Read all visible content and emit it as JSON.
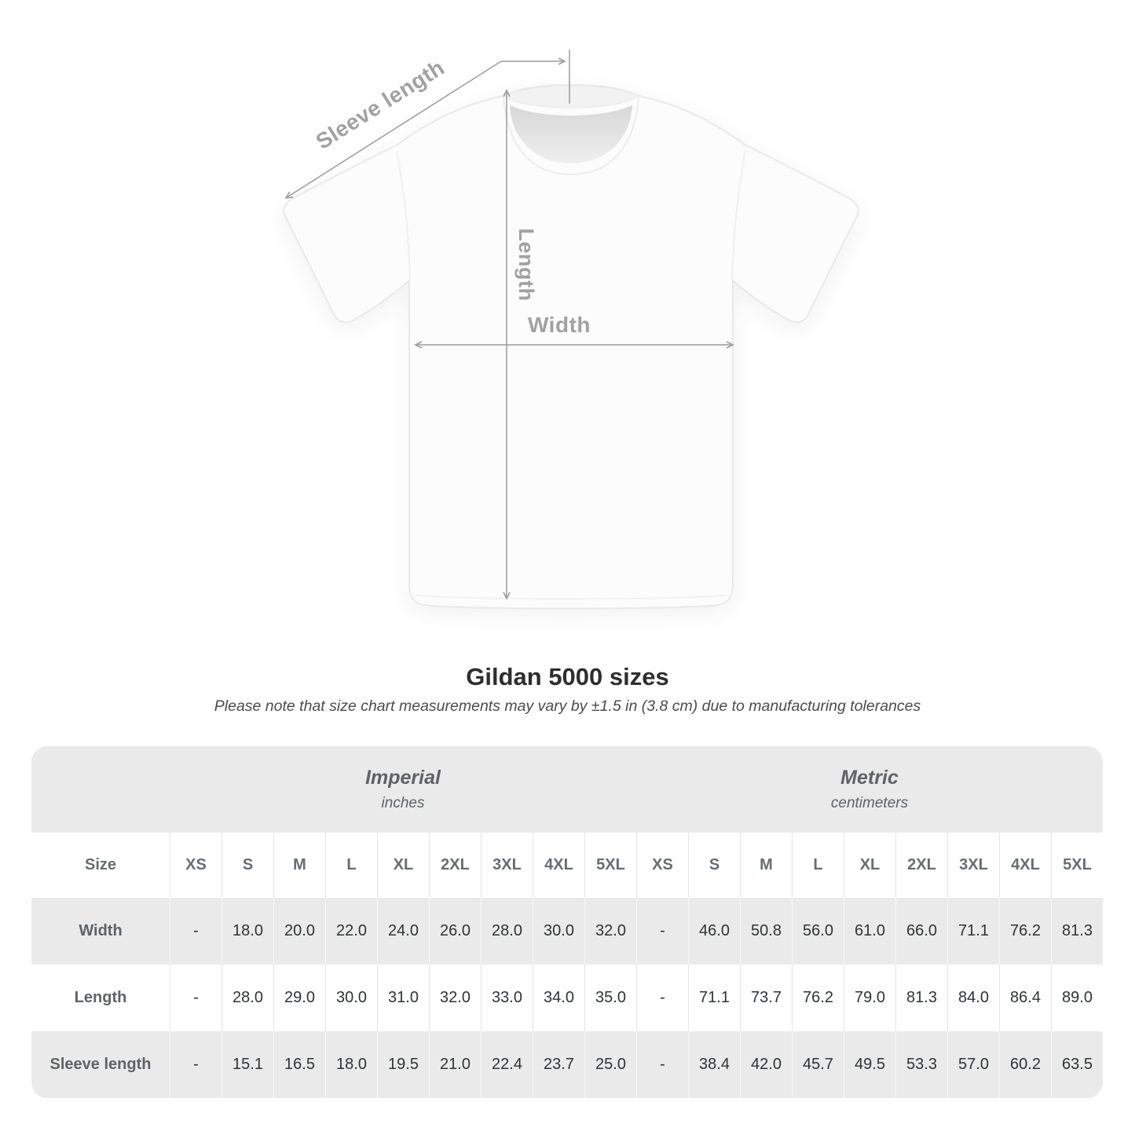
{
  "illustration": {
    "labels": {
      "sleeve_length": "Sleeve length",
      "length": "Length",
      "width": "Width"
    },
    "line_color": "#9b9b9b"
  },
  "heading": {
    "title": "Gildan 5000 sizes",
    "subtitle": "Please note that size chart measurements may vary by ±1.5 in (3.8 cm) due to manufacturing tolerances"
  },
  "size_chart": {
    "size_column_label": "Size",
    "unit_groups": [
      {
        "name": "Imperial",
        "unit": "inches"
      },
      {
        "name": "Metric",
        "unit": "centimeters"
      }
    ],
    "sizes": [
      "XS",
      "S",
      "M",
      "L",
      "XL",
      "2XL",
      "3XL",
      "4XL",
      "5XL"
    ],
    "rows": [
      {
        "label": "Width",
        "imperial": [
          "-",
          "18.0",
          "20.0",
          "22.0",
          "24.0",
          "26.0",
          "28.0",
          "30.0",
          "32.0"
        ],
        "metric": [
          "-",
          "46.0",
          "50.8",
          "56.0",
          "61.0",
          "66.0",
          "71.1",
          "76.2",
          "81.3"
        ]
      },
      {
        "label": "Length",
        "imperial": [
          "-",
          "28.0",
          "29.0",
          "30.0",
          "31.0",
          "32.0",
          "33.0",
          "34.0",
          "35.0"
        ],
        "metric": [
          "-",
          "71.1",
          "73.7",
          "76.2",
          "79.0",
          "81.3",
          "84.0",
          "86.4",
          "89.0"
        ]
      },
      {
        "label": "Sleeve length",
        "imperial": [
          "-",
          "15.1",
          "16.5",
          "18.0",
          "19.5",
          "21.0",
          "22.4",
          "23.7",
          "25.0"
        ],
        "metric": [
          "-",
          "38.4",
          "42.0",
          "45.7",
          "49.5",
          "53.3",
          "57.0",
          "60.2",
          "63.5"
        ]
      }
    ]
  },
  "chart_data": {
    "type": "table",
    "title": "Gildan 5000 sizes",
    "note": "Please note that size chart measurements may vary by ±1.5 in (3.8 cm) due to manufacturing tolerances",
    "column_groups": [
      "Imperial (inches)",
      "Metric (centimeters)"
    ],
    "columns": [
      "XS",
      "S",
      "M",
      "L",
      "XL",
      "2XL",
      "3XL",
      "4XL",
      "5XL"
    ],
    "rows": [
      {
        "measure": "Width",
        "imperial_in": [
          null,
          18.0,
          20.0,
          22.0,
          24.0,
          26.0,
          28.0,
          30.0,
          32.0
        ],
        "metric_cm": [
          null,
          46.0,
          50.8,
          56.0,
          61.0,
          66.0,
          71.1,
          76.2,
          81.3
        ]
      },
      {
        "measure": "Length",
        "imperial_in": [
          null,
          28.0,
          29.0,
          30.0,
          31.0,
          32.0,
          33.0,
          34.0,
          35.0
        ],
        "metric_cm": [
          null,
          71.1,
          73.7,
          76.2,
          79.0,
          81.3,
          84.0,
          86.4,
          89.0
        ]
      },
      {
        "measure": "Sleeve length",
        "imperial_in": [
          null,
          15.1,
          16.5,
          18.0,
          19.5,
          21.0,
          22.4,
          23.7,
          25.0
        ],
        "metric_cm": [
          null,
          38.4,
          42.0,
          45.7,
          49.5,
          53.3,
          57.0,
          60.2,
          63.5
        ]
      }
    ]
  }
}
